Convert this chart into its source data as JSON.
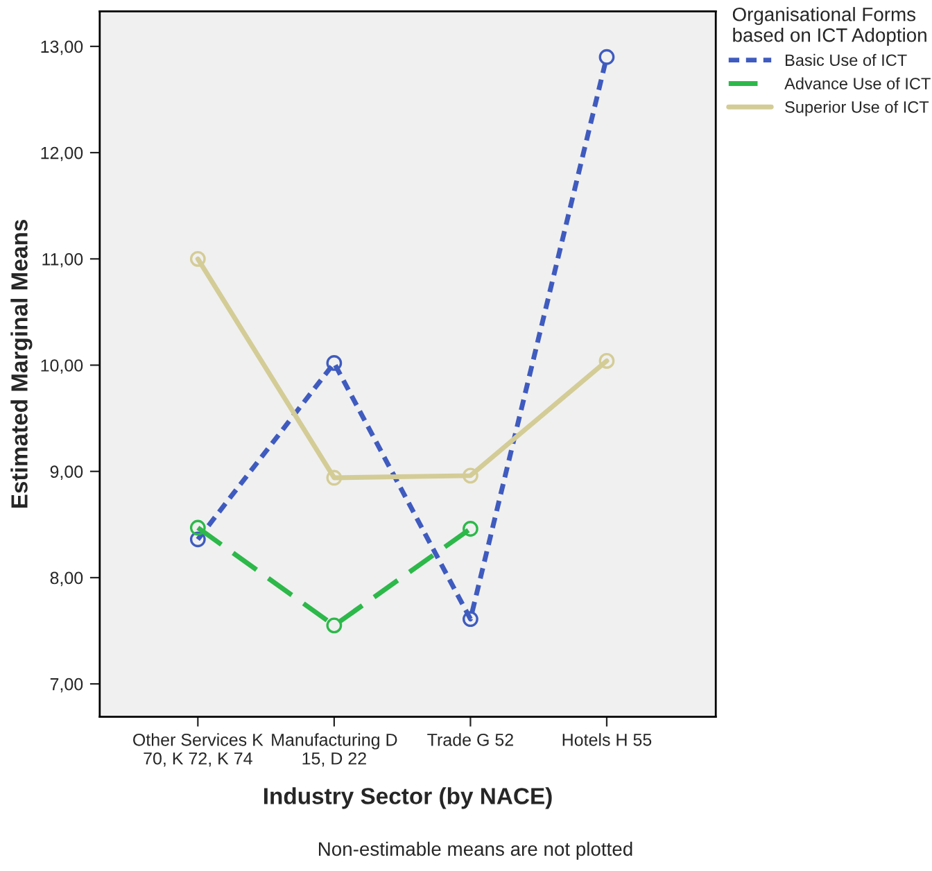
{
  "chart_data": {
    "type": "line",
    "xlabel": "Industry Sector (by NACE)",
    "ylabel": "Estimated Marginal Means",
    "legend_title": "Organisational Forms based on ICT Adoption",
    "categories": [
      "Other Services K 70, K 72, K 74",
      "Manufacturing D 15, D 22",
      "Trade G 52",
      "Hotels H 55"
    ],
    "series": [
      {
        "name": "Basic Use of ICT",
        "color": "#3f5bbf",
        "line_style": "dotted",
        "values": [
          8.36,
          10.02,
          7.61,
          12.9
        ]
      },
      {
        "name": "Advance Use of ICT",
        "color": "#2db84a",
        "line_style": "dashed",
        "values": [
          8.47,
          7.55,
          8.46,
          null
        ]
      },
      {
        "name": "Superior Use of ICT",
        "color": "#d4cc96",
        "line_style": "solid",
        "values": [
          11.0,
          8.94,
          8.96,
          10.04
        ]
      }
    ],
    "ylim": [
      6.69,
      13.33
    ],
    "yticks": [
      {
        "value": 7,
        "label": "7,00"
      },
      {
        "value": 8,
        "label": "8,00"
      },
      {
        "value": 9,
        "label": "9,00"
      },
      {
        "value": 10,
        "label": "10,00"
      },
      {
        "value": 11,
        "label": "11,00"
      },
      {
        "value": 12,
        "label": "12,00"
      },
      {
        "value": 13,
        "label": "13,00"
      }
    ],
    "marker": "circle",
    "grid": false,
    "legend": "right",
    "annotations": [
      "Non-estimable means are not plotted"
    ]
  }
}
